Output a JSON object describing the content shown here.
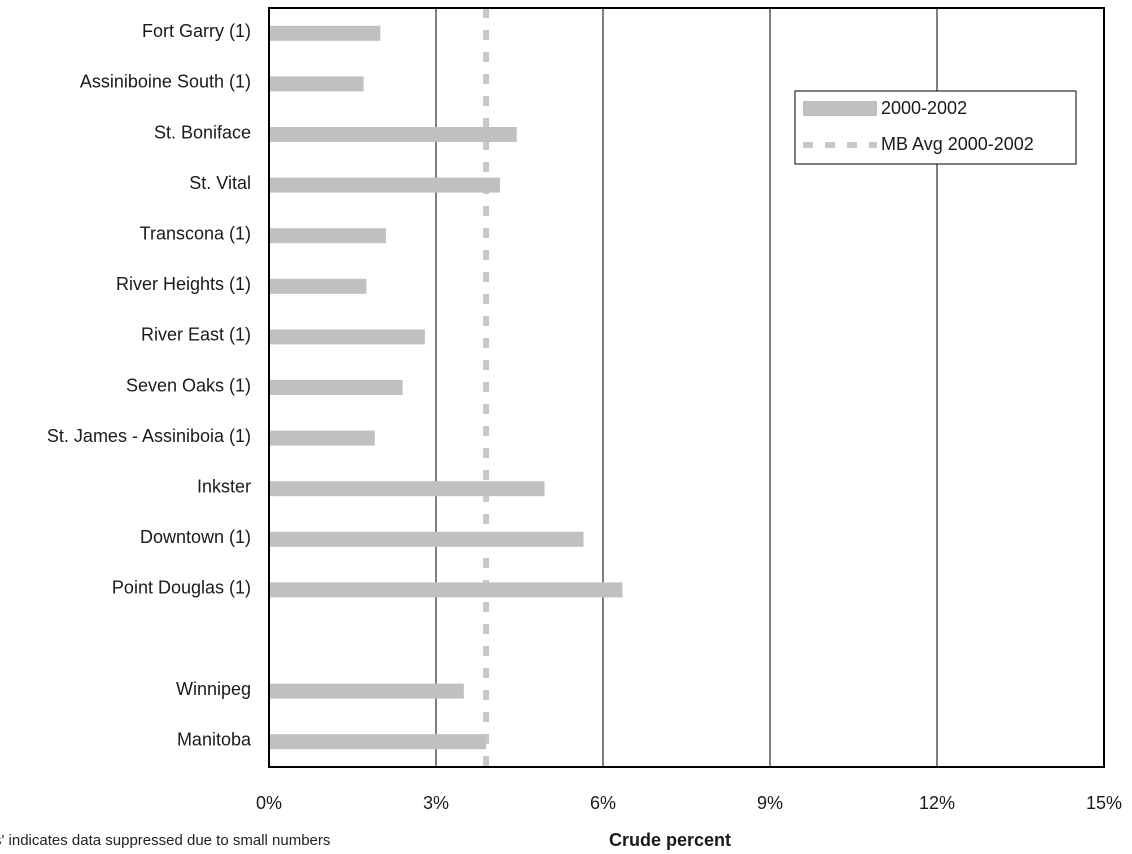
{
  "chart_data": {
    "type": "bar",
    "orientation": "horizontal",
    "categories": [
      "Fort Garry (1)",
      "Assiniboine South (1)",
      "St. Boniface",
      "St. Vital",
      "Transcona (1)",
      "River Heights (1)",
      "River East (1)",
      "Seven Oaks (1)",
      "St. James - Assiniboia (1)",
      "Inkster",
      "Downtown (1)",
      "Point Douglas (1)",
      "",
      "Winnipeg",
      "Manitoba"
    ],
    "series": [
      {
        "name": "2000-2002",
        "values": [
          2.0,
          1.7,
          4.45,
          4.15,
          2.1,
          1.75,
          2.8,
          2.4,
          1.9,
          4.95,
          5.65,
          6.35,
          null,
          3.5,
          3.9
        ],
        "color": "#c0c0c0"
      },
      {
        "name": "MB Avg 2000-2002",
        "value": 3.9,
        "style": "dashed",
        "color": "#c8c8c8"
      }
    ],
    "xlim": [
      0,
      15
    ],
    "xticks": [
      "0%",
      "3%",
      "6%",
      "9%",
      "12%",
      "15%"
    ],
    "xlabel": "Crude percent",
    "ylabel": "",
    "grid": "vertical",
    "legend_position": "top-right",
    "footnote": "s' indicates data suppressed due to small numbers"
  }
}
